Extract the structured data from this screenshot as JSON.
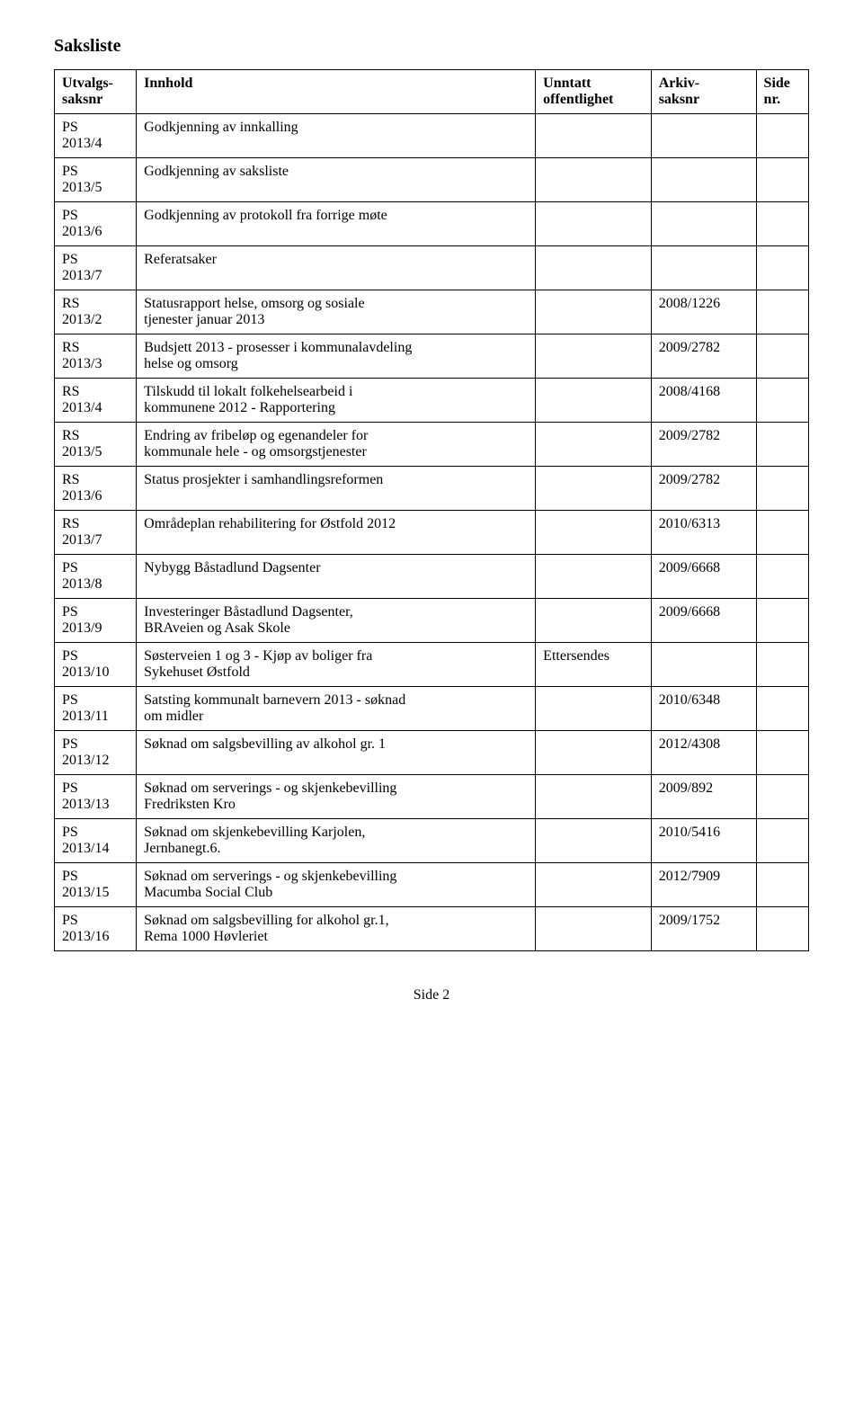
{
  "page_title": "Saksliste",
  "footer": "Side 2",
  "headers": {
    "col_a_l1": "Utvalgs-",
    "col_a_l2": "saksnr",
    "col_b": "Innhold",
    "col_c_l1": "Unntatt",
    "col_c_l2": "offentlighet",
    "col_d_l1": "Arkiv-",
    "col_d_l2": "saksnr",
    "col_e_l1": "Side",
    "col_e_l2": "nr."
  },
  "rows": [
    {
      "a_l1": "PS",
      "a_l2": "2013/4",
      "b_l1": "Godkjenning av innkalling",
      "b_l2": "",
      "c": "",
      "d": "",
      "e": ""
    },
    {
      "a_l1": "PS",
      "a_l2": "2013/5",
      "b_l1": "Godkjenning av saksliste",
      "b_l2": "",
      "c": "",
      "d": "",
      "e": ""
    },
    {
      "a_l1": "PS",
      "a_l2": "2013/6",
      "b_l1": "Godkjenning av protokoll fra forrige møte",
      "b_l2": "",
      "c": "",
      "d": "",
      "e": ""
    },
    {
      "a_l1": "PS",
      "a_l2": "2013/7",
      "b_l1": "Referatsaker",
      "b_l2": "",
      "c": "",
      "d": "",
      "e": ""
    },
    {
      "a_l1": "RS",
      "a_l2": "2013/2",
      "b_l1": "Statusrapport helse, omsorg og sosiale",
      "b_l2": "tjenester januar 2013",
      "c": "",
      "d": "2008/1226",
      "e": ""
    },
    {
      "a_l1": "RS",
      "a_l2": "2013/3",
      "b_l1": "Budsjett 2013 - prosesser i kommunalavdeling",
      "b_l2": "helse og omsorg",
      "c": "",
      "d": "2009/2782",
      "e": ""
    },
    {
      "a_l1": "RS",
      "a_l2": "2013/4",
      "b_l1": "Tilskudd til lokalt folkehelsearbeid i",
      "b_l2": "kommunene 2012 - Rapportering",
      "c": "",
      "d": "2008/4168",
      "e": ""
    },
    {
      "a_l1": "RS",
      "a_l2": "2013/5",
      "b_l1": "Endring av fribeløp og egenandeler for",
      "b_l2": "kommunale hele - og omsorgstjenester",
      "c": "",
      "d": "2009/2782",
      "e": ""
    },
    {
      "a_l1": "RS",
      "a_l2": "2013/6",
      "b_l1": "Status prosjekter i samhandlingsreformen",
      "b_l2": "",
      "c": "",
      "d": "2009/2782",
      "e": ""
    },
    {
      "a_l1": "RS",
      "a_l2": "2013/7",
      "b_l1": "Områdeplan rehabilitering for Østfold 2012",
      "b_l2": "",
      "c": "",
      "d": "2010/6313",
      "e": ""
    },
    {
      "a_l1": "PS",
      "a_l2": "2013/8",
      "b_l1": "Nybygg Båstadlund Dagsenter",
      "b_l2": "",
      "c": "",
      "d": "2009/6668",
      "e": ""
    },
    {
      "a_l1": "PS",
      "a_l2": "2013/9",
      "b_l1": "Investeringer Båstadlund Dagsenter,",
      "b_l2": "BRAveien og Asak Skole",
      "c": "",
      "d": "2009/6668",
      "e": ""
    },
    {
      "a_l1": "PS",
      "a_l2": "2013/10",
      "b_l1": "Søsterveien 1 og 3 - Kjøp av boliger fra",
      "b_l2": "Sykehuset Østfold",
      "c": "Ettersendes",
      "d": "",
      "e": ""
    },
    {
      "a_l1": "PS",
      "a_l2": "2013/11",
      "b_l1": "Satsting kommunalt barnevern 2013 - søknad",
      "b_l2": "om midler",
      "c": "",
      "d": "2010/6348",
      "e": ""
    },
    {
      "a_l1": "PS",
      "a_l2": "2013/12",
      "b_l1": "Søknad om salgsbevilling av alkohol gr. 1",
      "b_l2": "",
      "c": "",
      "d": "2012/4308",
      "e": ""
    },
    {
      "a_l1": "PS",
      "a_l2": "2013/13",
      "b_l1": "Søknad om serverings - og skjenkebevilling",
      "b_l2": "Fredriksten Kro",
      "c": "",
      "d": "2009/892",
      "e": ""
    },
    {
      "a_l1": "PS",
      "a_l2": "2013/14",
      "b_l1": "Søknad om skjenkebevilling Karjolen,",
      "b_l2": "Jernbanegt.6.",
      "c": "",
      "d": "2010/5416",
      "e": ""
    },
    {
      "a_l1": "PS",
      "a_l2": "2013/15",
      "b_l1": "Søknad om serverings - og skjenkebevilling",
      "b_l2": "Macumba Social Club",
      "c": "",
      "d": "2012/7909",
      "e": ""
    },
    {
      "a_l1": "PS",
      "a_l2": "2013/16",
      "b_l1": "Søknad om salgsbevilling for alkohol gr.1,",
      "b_l2": "Rema 1000 Høvleriet",
      "c": "",
      "d": "2009/1752",
      "e": ""
    }
  ]
}
